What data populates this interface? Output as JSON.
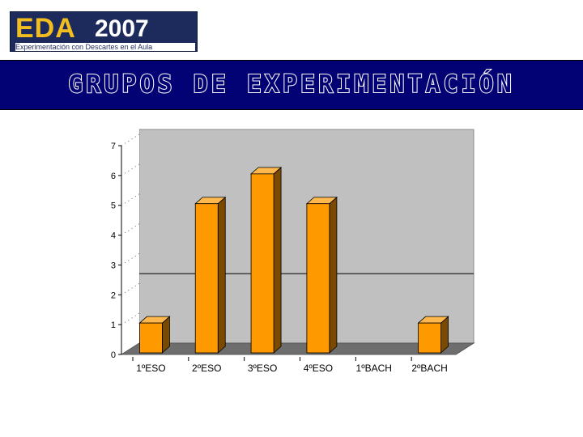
{
  "logo": {
    "eda": "EDA",
    "year": "2007",
    "subtitle": "Experimentación con Descartes en el Aula"
  },
  "header": {
    "title": "GRUPOS DE EXPERIMENTACIÓN"
  },
  "colors": {
    "banner": "#020274",
    "bar_front": "#ff9900",
    "bar_side": "#7a4a00",
    "wall": "#c0c0c0",
    "floor": "#6e6e6e"
  },
  "chart_data": {
    "type": "bar",
    "categories": [
      "1ºESO",
      "2ºESO",
      "3ºESO",
      "4ºESO",
      "1ºBACH",
      "2ºBACH"
    ],
    "values": [
      1,
      5,
      6,
      5,
      0,
      1
    ],
    "ylim": [
      0,
      7
    ],
    "yticks": [
      "0",
      "1",
      "2",
      "3",
      "4",
      "5",
      "6",
      "7"
    ],
    "grid": false,
    "legend": "none",
    "style": "3d"
  }
}
